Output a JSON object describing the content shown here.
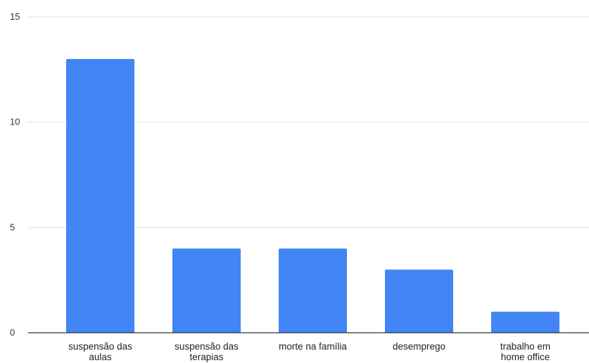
{
  "chart_data": {
    "type": "bar",
    "categories": [
      [
        "suspensão das",
        "aulas"
      ],
      [
        "suspensão das",
        "terapias"
      ],
      [
        "morte na família"
      ],
      [
        "desemprego"
      ],
      [
        "trabalho em",
        "home office"
      ]
    ],
    "values": [
      13,
      4,
      4,
      3,
      1
    ],
    "yticks": [
      0,
      5,
      10,
      15
    ],
    "ylim": [
      0,
      15
    ],
    "title": "",
    "xlabel": "",
    "ylabel": "",
    "grid": true,
    "legend": "none",
    "colors": {
      "bar": "#4285f4",
      "grid": "#e0e0e0",
      "axis": "#333333"
    }
  }
}
